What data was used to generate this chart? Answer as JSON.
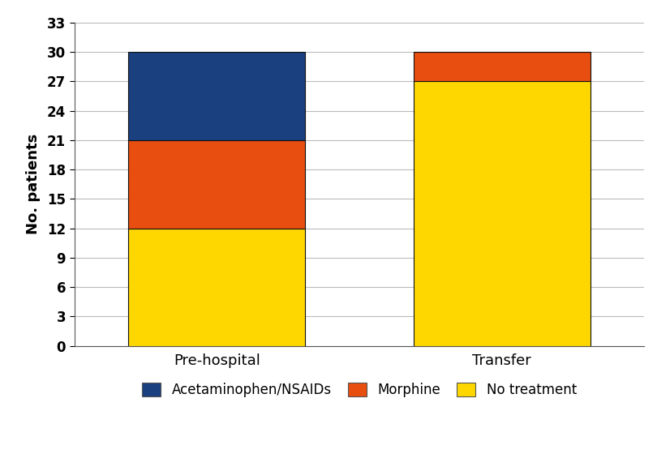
{
  "categories": [
    "Pre-hospital",
    "Transfer"
  ],
  "no_treatment": [
    12,
    27
  ],
  "morphine": [
    9,
    3
  ],
  "acetaminophen": [
    9,
    0
  ],
  "colors": {
    "no_treatment": "#FFD700",
    "morphine": "#E84E0F",
    "acetaminophen": "#1A4080"
  },
  "ylabel": "No. patients",
  "ylim": [
    0,
    33
  ],
  "yticks": [
    0,
    3,
    6,
    9,
    12,
    15,
    18,
    21,
    24,
    27,
    30,
    33
  ],
  "legend_labels": [
    "Acetaminophen/NSAIDs",
    "Morphine",
    "No treatment"
  ],
  "bar_width": 0.62,
  "bar_positions": [
    0.5,
    1.5
  ],
  "xlim": [
    0,
    2
  ],
  "background_color": "#FFFFFF",
  "grid_color": "#BBBBBB",
  "edge_color": "#111111"
}
